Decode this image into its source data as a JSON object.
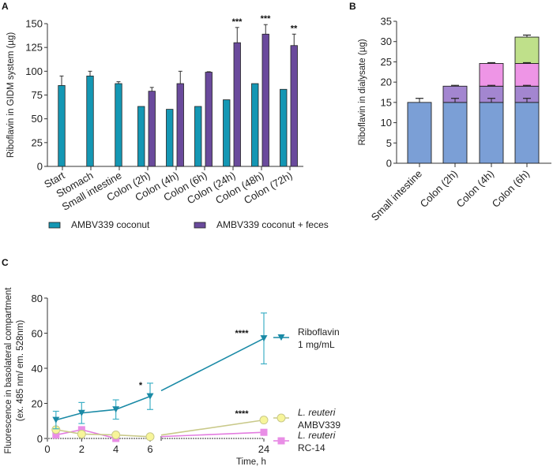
{
  "chart_data": [
    {
      "id": "A",
      "panel_label": "A",
      "type": "bar",
      "ylabel": "Riboflavin in GIDM system (µg)",
      "xlabel": "",
      "ylim": [
        0,
        150
      ],
      "yticks": [
        0,
        25,
        50,
        75,
        100,
        125,
        150
      ],
      "categories": [
        "Start",
        "Stomach",
        "Small intestine",
        "Colon (2h)",
        "Colon (4h)",
        "Colon (6h)",
        "Colon (24h)",
        "Colon (48h)",
        "Colon (72h)"
      ],
      "series": [
        {
          "name": "AMBV339 coconut",
          "color": "#1497b4",
          "values": [
            85,
            95,
            87,
            63,
            60,
            63,
            70,
            87,
            81
          ],
          "errors": [
            10,
            5,
            2,
            0,
            0,
            0,
            0,
            0,
            0
          ]
        },
        {
          "name": "AMBV339 coconut + feces",
          "color": "#6a4a9c",
          "values": [
            null,
            null,
            null,
            79,
            87,
            99,
            130,
            139,
            127
          ],
          "errors": [
            0,
            0,
            0,
            4,
            13,
            0.5,
            16,
            10,
            12
          ]
        }
      ],
      "annotations": [
        {
          "category": "Colon (24h)",
          "text": "***"
        },
        {
          "category": "Colon (48h)",
          "text": "***"
        },
        {
          "category": "Colon (72h)",
          "text": "**"
        }
      ],
      "legend_position": "bottom"
    },
    {
      "id": "B",
      "panel_label": "B",
      "type": "bar",
      "stacked": true,
      "ylabel": "Riboflavin in dialysate (µg)",
      "xlabel": "",
      "ylim": [
        0,
        35
      ],
      "yticks": [
        0,
        5,
        10,
        15,
        20,
        25,
        30,
        35
      ],
      "categories": [
        "Small intestine",
        "Colon (2h)",
        "Colon (4h)",
        "Colon (6h)"
      ],
      "series": [
        {
          "name": "Small intestine",
          "color": "#7b9fd6",
          "values": [
            15,
            15,
            15,
            15
          ],
          "errors": [
            1,
            1,
            1,
            1
          ]
        },
        {
          "name": "Colon (2h)",
          "color": "#a386d0",
          "values": [
            null,
            4,
            4,
            4
          ],
          "errors": [
            0,
            0.2,
            0.2,
            0.2
          ]
        },
        {
          "name": "Colon (4h)",
          "color": "#ee95e6",
          "values": [
            null,
            null,
            5.6,
            5.6
          ],
          "errors": [
            0,
            0,
            0.2,
            0.2
          ]
        },
        {
          "name": "Colon (6h)",
          "color": "#bfe08a",
          "values": [
            null,
            null,
            null,
            6.5
          ],
          "errors": [
            0,
            0,
            0,
            0.5
          ]
        }
      ]
    },
    {
      "id": "C",
      "panel_label": "C",
      "type": "line",
      "ylabel_line1": "Fluorescence in basolateral compartment",
      "ylabel_line2": "(ex. 485 nm/ em. 528nm)",
      "xlabel": "Time, h",
      "ylim": [
        0,
        80
      ],
      "yticks": [
        0,
        20,
        40,
        60,
        80
      ],
      "xticks": [
        0,
        2,
        4,
        6,
        24
      ],
      "x_axis_break": [
        6,
        24
      ],
      "series": [
        {
          "name_line1": "Riboflavin",
          "name_line2": "1 mg/mL",
          "italic_line1": false,
          "marker": "triangle-down",
          "color": "#1a8aa6",
          "errcolor": "#3fb0c6",
          "x": [
            0.5,
            2,
            4,
            6,
            24
          ],
          "y": [
            10.5,
            14.5,
            16.5,
            24,
            57
          ],
          "errors": [
            5,
            6,
            5.5,
            7.5,
            14.5
          ]
        },
        {
          "name_line1": "L. reuteri",
          "name_line2": "AMBV339",
          "italic_line1": true,
          "marker": "circle",
          "color": "#c9c98a",
          "fill": "#f7f59a",
          "x": [
            0.5,
            2,
            4,
            6,
            24
          ],
          "y": [
            5,
            2.5,
            2,
            1,
            10.5
          ],
          "errors": [
            0,
            0,
            0,
            0,
            1.5
          ]
        },
        {
          "name_line1": "L. reuteri",
          "name_line2": "RC-14",
          "italic_line1": true,
          "marker": "square",
          "color": "#e37ce0",
          "fill": "#e98ee6",
          "x": [
            0.5,
            2,
            4,
            24
          ],
          "y": [
            2,
            5,
            0,
            3.5
          ],
          "errors": [
            0,
            0,
            0,
            0
          ]
        }
      ],
      "annotations": [
        {
          "x": 6,
          "series": "Riboflavin",
          "text": "*"
        },
        {
          "x": 24,
          "series": "Riboflavin",
          "text": "****"
        },
        {
          "x": 24,
          "series": "L. reuteri AMBV339",
          "text": "****"
        }
      ],
      "legend_position": "right"
    }
  ]
}
